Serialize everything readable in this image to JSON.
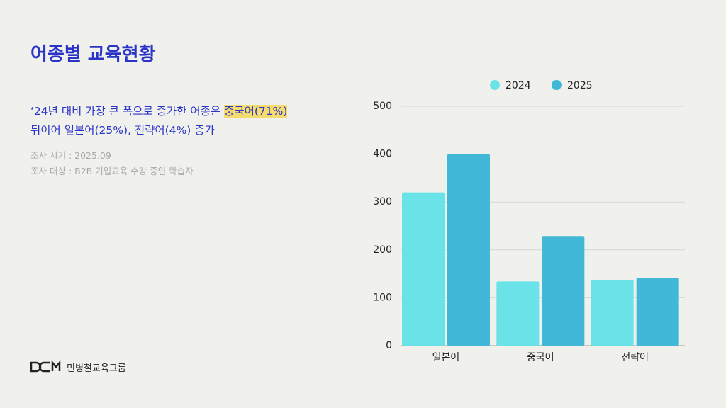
{
  "header": {
    "title": "어종별 교육현황"
  },
  "description": {
    "line1": "‘24년 대비 가장 큰 폭으로 증가한 어종은 ",
    "highlight": "중국어(71%)",
    "line2": "뒤이어 일본어(25%), 전략어(4%) 증가"
  },
  "notes": [
    "조사 시기 : 2025.09",
    "조사 대상 : B2B 기업교육 수강 중인 학습자"
  ],
  "brand": "민병철교육그룹",
  "chart_data": {
    "type": "bar",
    "categories": [
      "일본어",
      "중국어",
      "전략어"
    ],
    "series": [
      {
        "name": "2024",
        "color": "#6ae3e8",
        "values": [
          320,
          134,
          137
        ]
      },
      {
        "name": "2025",
        "color": "#42b8d8",
        "values": [
          400,
          229,
          142
        ]
      }
    ],
    "ylim": [
      0,
      500
    ],
    "yticks": [
      0,
      100,
      200,
      300,
      400,
      500
    ],
    "grid": true,
    "legend": "top"
  }
}
